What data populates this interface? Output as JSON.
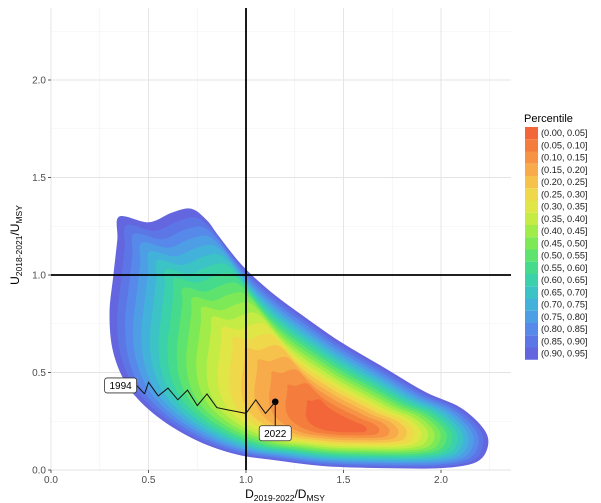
{
  "chart_data": {
    "type": "contour",
    "xlabel": {
      "main": "D",
      "sub1": "2019-2022",
      "mid": "/D",
      "sub2": "MSY"
    },
    "ylabel": {
      "main": "U",
      "sub1": "2018-2021",
      "mid": "/U",
      "sub2": "MSY"
    },
    "xlim": [
      0,
      2.35
    ],
    "ylim": [
      0,
      2.35
    ],
    "x_ticks": [
      0,
      0.5,
      1,
      1.5,
      2
    ],
    "x_tick_labels": [
      "0.0",
      "0.5",
      "1.0",
      "1.5",
      "2.0"
    ],
    "y_ticks": [
      0,
      0.5,
      1,
      1.5,
      2
    ],
    "y_tick_labels": [
      "0.0",
      "0.5",
      "1.0",
      "1.5",
      "2.0"
    ],
    "reference_lines": {
      "vertical_x": 1.0,
      "horizontal_y": 1.0
    },
    "grid": true,
    "legend_position": "right",
    "legend": {
      "title": "Percentile",
      "entries": [
        {
          "label": "(0.00, 0.05]",
          "color": "#f2663a"
        },
        {
          "label": "(0.05, 0.10]",
          "color": "#f47c3c"
        },
        {
          "label": "(0.10, 0.15]",
          "color": "#f69344"
        },
        {
          "label": "(0.15, 0.20]",
          "color": "#f7ab4a"
        },
        {
          "label": "(0.20, 0.25]",
          "color": "#f6c24c"
        },
        {
          "label": "(0.25, 0.30]",
          "color": "#efd84a"
        },
        {
          "label": "(0.30, 0.35]",
          "color": "#dfe645"
        },
        {
          "label": "(0.35, 0.40]",
          "color": "#c4ec45"
        },
        {
          "label": "(0.40, 0.45]",
          "color": "#a2ec4a"
        },
        {
          "label": "(0.45, 0.50]",
          "color": "#7ee957"
        },
        {
          "label": "(0.50, 0.55]",
          "color": "#5ee36e"
        },
        {
          "label": "(0.55, 0.60]",
          "color": "#46db8c"
        },
        {
          "label": "(0.60, 0.65]",
          "color": "#3bd1aa"
        },
        {
          "label": "(0.65, 0.70]",
          "color": "#3cc3c5"
        },
        {
          "label": "(0.70, 0.75]",
          "color": "#43b2da"
        },
        {
          "label": "(0.75, 0.80]",
          "color": "#4e9ee6"
        },
        {
          "label": "(0.80, 0.85]",
          "color": "#5789ea"
        },
        {
          "label": "(0.85, 0.90]",
          "color": "#5d76e6"
        },
        {
          "label": "(0.90, 0.95]",
          "color": "#6366de"
        }
      ]
    },
    "trajectory": {
      "x": [
        0.48,
        0.5,
        0.55,
        0.6,
        0.65,
        0.7,
        0.75,
        0.8,
        0.85,
        0.9,
        0.95,
        1.0,
        1.05,
        1.1,
        1.15
      ],
      "y": [
        0.39,
        0.45,
        0.38,
        0.42,
        0.36,
        0.41,
        0.33,
        0.39,
        0.32,
        0.31,
        0.3,
        0.29,
        0.36,
        0.29,
        0.35
      ],
      "start_label": "1994",
      "end_label": "2022",
      "end_point": [
        1.15,
        0.35
      ]
    },
    "density_mode": [
      1.5,
      0.22
    ]
  }
}
